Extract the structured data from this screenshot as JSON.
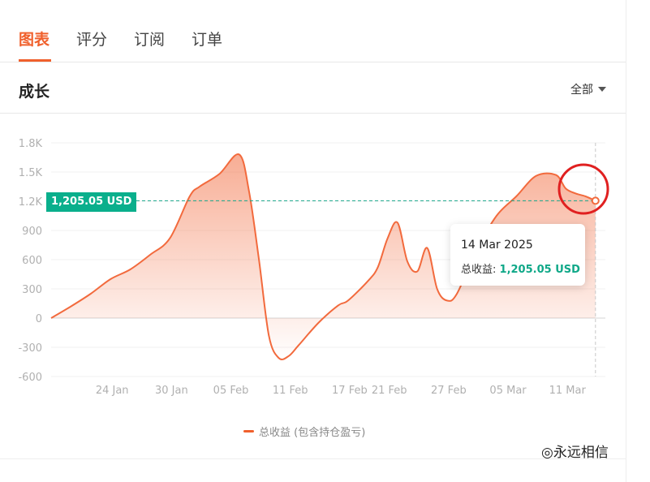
{
  "tabs": [
    {
      "label": "图表",
      "active": true
    },
    {
      "label": "评分",
      "active": false
    },
    {
      "label": "订阅",
      "active": false
    },
    {
      "label": "订单",
      "active": false
    }
  ],
  "section": {
    "title": "成长",
    "range_label": "全部",
    "range_icon": "caret-down-icon"
  },
  "colors": {
    "accent": "#f0602c",
    "line": "#f26a3d",
    "positive": "#0aaf8c",
    "annotation": "#e02020"
  },
  "tooltip": {
    "date": "14 Mar 2025",
    "label": "总收益:",
    "value": "1,205.05 USD"
  },
  "price_tag": "1,205.05 USD",
  "legend": {
    "label": "总收益 (包含持仓盈亏)"
  },
  "watermark": "◎永远相信",
  "chart_data": {
    "type": "area",
    "title": "",
    "xlabel": "",
    "ylabel": "",
    "ylim": [
      -600,
      1800
    ],
    "y_ticks": [
      "1.8K",
      "1.5K",
      "1.2K",
      "900",
      "600",
      "300",
      "0",
      "-300",
      "-600"
    ],
    "y_tick_values": [
      1800,
      1500,
      1200,
      900,
      600,
      300,
      0,
      -300,
      -600
    ],
    "x_ticks": [
      "24 Jan",
      "30 Jan",
      "05 Feb",
      "11 Feb",
      "17 Feb",
      "21 Feb",
      "27 Feb",
      "05 Mar",
      "11 Mar"
    ],
    "grid": true,
    "legend_position": "bottom",
    "highlight": {
      "date": "14 Mar 2025",
      "value": 1205.05
    },
    "series": [
      {
        "name": "总收益 (包含持仓盈亏)",
        "x": [
          "2025-01-18",
          "2025-01-20",
          "2025-01-22",
          "2025-01-24",
          "2025-01-26",
          "2025-01-28",
          "2025-01-30",
          "2025-02-01",
          "2025-02-02",
          "2025-02-04",
          "2025-02-06",
          "2025-02-07",
          "2025-02-08",
          "2025-02-09",
          "2025-02-10",
          "2025-02-11",
          "2025-02-12",
          "2025-02-14",
          "2025-02-16",
          "2025-02-17",
          "2025-02-19",
          "2025-02-20",
          "2025-02-21",
          "2025-02-22",
          "2025-02-23",
          "2025-02-24",
          "2025-02-25",
          "2025-02-26",
          "2025-02-27",
          "2025-02-28",
          "2025-03-02",
          "2025-03-04",
          "2025-03-06",
          "2025-03-08",
          "2025-03-10",
          "2025-03-11",
          "2025-03-12",
          "2025-03-13",
          "2025-03-14"
        ],
        "values": [
          0,
          120,
          250,
          400,
          500,
          650,
          820,
          1250,
          1350,
          1480,
          1680,
          1300,
          600,
          -180,
          -410,
          -390,
          -280,
          -50,
          130,
          180,
          380,
          520,
          820,
          980,
          580,
          480,
          720,
          300,
          180,
          250,
          700,
          1050,
          1250,
          1460,
          1470,
          1330,
          1280,
          1250,
          1205
        ]
      }
    ]
  }
}
